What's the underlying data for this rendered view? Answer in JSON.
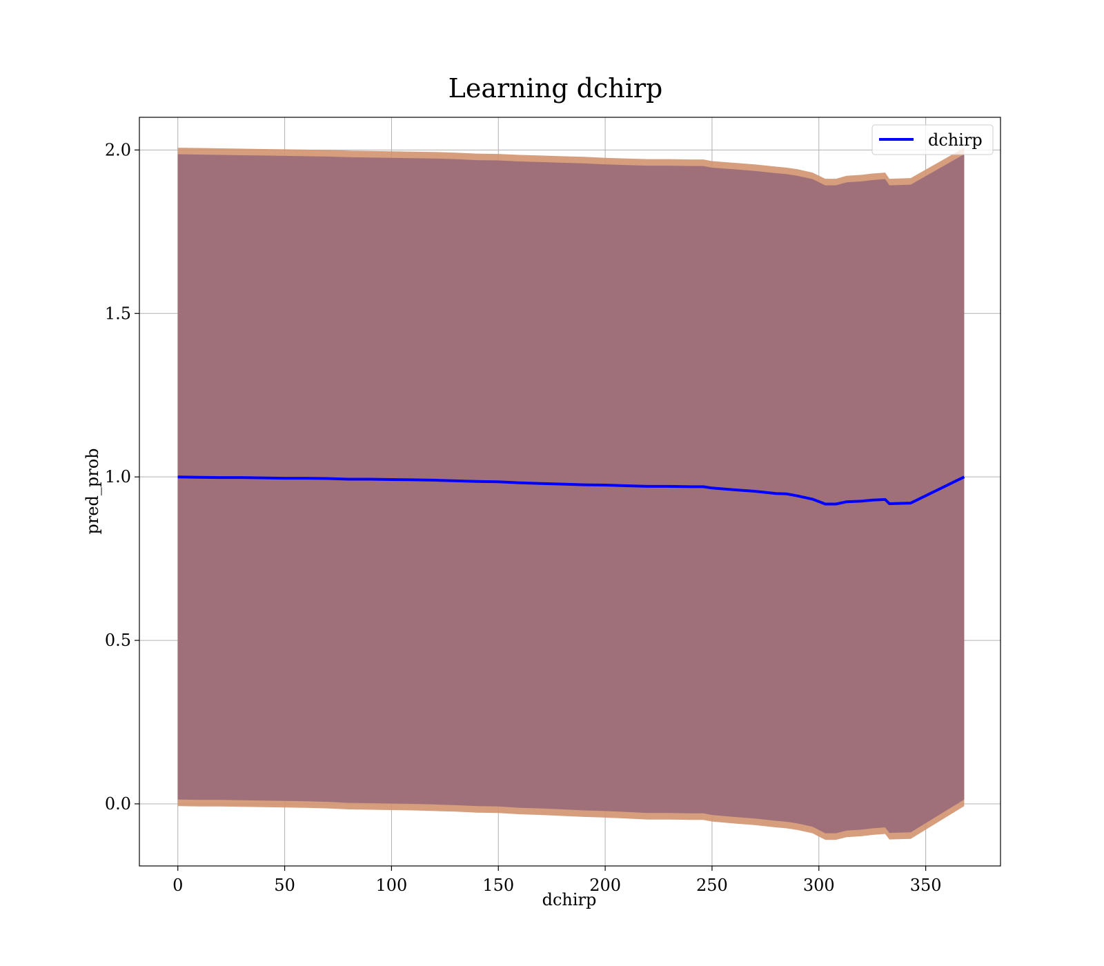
{
  "chart_data": {
    "type": "line",
    "title": "Learning dchirp",
    "xlabel": "dchirp",
    "ylabel": "pred_prob",
    "xlim": [
      -18,
      385
    ],
    "ylim": [
      -0.19,
      2.1
    ],
    "xticks": [
      0,
      50,
      100,
      150,
      200,
      250,
      300,
      350
    ],
    "yticks": [
      0.0,
      0.5,
      1.0,
      1.5,
      2.0
    ],
    "xtick_labels": [
      "0",
      "50",
      "100",
      "150",
      "200",
      "250",
      "300",
      "350"
    ],
    "ytick_labels": [
      "0.0",
      "0.5",
      "1.0",
      "1.5",
      "2.0"
    ],
    "grid": true,
    "legend_position": "top-right",
    "colors": {
      "line": "#0000ff",
      "band_outer": "#d2946f",
      "band_inner": "#a0707a"
    },
    "series": [
      {
        "name": "dchirp",
        "x": [
          0,
          10,
          20,
          30,
          40,
          50,
          60,
          70,
          80,
          90,
          100,
          110,
          120,
          130,
          140,
          150,
          160,
          170,
          180,
          190,
          200,
          210,
          220,
          230,
          240,
          246,
          250,
          260,
          270,
          280,
          285,
          290,
          297,
          303,
          308,
          313,
          320,
          325,
          331,
          333,
          343,
          368
        ],
        "y": [
          1.0,
          0.999,
          0.998,
          0.998,
          0.997,
          0.996,
          0.996,
          0.995,
          0.993,
          0.993,
          0.992,
          0.991,
          0.99,
          0.988,
          0.986,
          0.985,
          0.982,
          0.98,
          0.978,
          0.976,
          0.975,
          0.973,
          0.971,
          0.971,
          0.97,
          0.97,
          0.966,
          0.961,
          0.956,
          0.949,
          0.948,
          0.942,
          0.932,
          0.917,
          0.917,
          0.924,
          0.926,
          0.929,
          0.931,
          0.918,
          0.92,
          1.0
        ],
        "lower": [
          0.005,
          0.004,
          0.004,
          0.003,
          0.002,
          0.001,
          0.0,
          -0.002,
          -0.005,
          -0.006,
          -0.007,
          -0.008,
          -0.01,
          -0.012,
          -0.015,
          -0.016,
          -0.02,
          -0.022,
          -0.025,
          -0.028,
          -0.03,
          -0.033,
          -0.036,
          -0.036,
          -0.037,
          -0.037,
          -0.042,
          -0.048,
          -0.053,
          -0.06,
          -0.063,
          -0.068,
          -0.078,
          -0.098,
          -0.098,
          -0.09,
          -0.087,
          -0.083,
          -0.08,
          -0.097,
          -0.095,
          0.005
        ],
        "upper": [
          1.995,
          1.994,
          1.993,
          1.992,
          1.991,
          1.99,
          1.989,
          1.988,
          1.986,
          1.985,
          1.984,
          1.983,
          1.982,
          1.98,
          1.977,
          1.976,
          1.973,
          1.971,
          1.969,
          1.967,
          1.964,
          1.962,
          1.96,
          1.96,
          1.959,
          1.959,
          1.954,
          1.949,
          1.944,
          1.937,
          1.934,
          1.929,
          1.919,
          1.9,
          1.9,
          1.909,
          1.912,
          1.916,
          1.919,
          1.9,
          1.902,
          1.995
        ]
      }
    ]
  }
}
